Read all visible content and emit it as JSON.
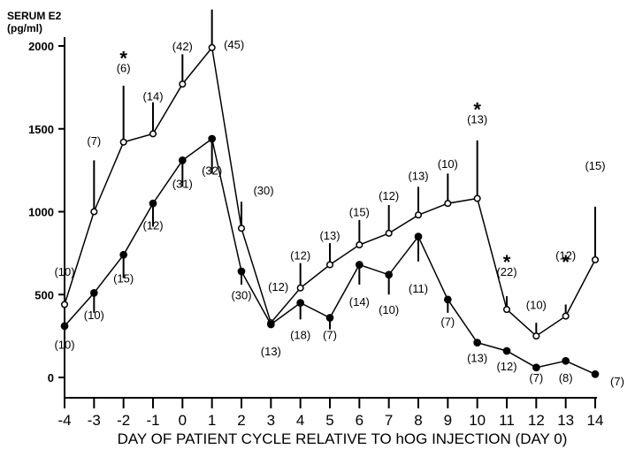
{
  "chart_data": {
    "type": "line",
    "title": "",
    "ylabel_line1": "SERUM E2",
    "ylabel_line2": "(pg/ml)",
    "xlabel": "DAY OF PATIENT CYCLE RELATIVE TO hOG INJECTION (DAY 0)",
    "xlim": [
      -4,
      14
    ],
    "ylim": [
      0,
      2000
    ],
    "x_ticks": [
      -4,
      -3,
      -2,
      -1,
      0,
      1,
      2,
      3,
      4,
      5,
      6,
      7,
      8,
      9,
      10,
      11,
      12,
      13,
      14
    ],
    "x_tick_labels": [
      "-4",
      "-3",
      "-2",
      "-1",
      "0",
      "1",
      "2",
      "3",
      "4",
      "5",
      "6",
      "7",
      "8",
      "9",
      "10",
      "11",
      "12",
      "13",
      "14"
    ],
    "y_ticks": [
      0,
      500,
      1000,
      1500,
      2000
    ],
    "y_tick_labels": [
      "0",
      "500",
      "1000",
      "1500",
      "2000"
    ],
    "grid": false,
    "series": [
      {
        "marker": "open-circle",
        "color": "#000000",
        "x": [
          -4,
          -3,
          -2,
          -1,
          0,
          1,
          2,
          3,
          4,
          5,
          6,
          7,
          8,
          9,
          10,
          11,
          12,
          13,
          14
        ],
        "y": [
          440,
          1000,
          1420,
          1470,
          1770,
          1990,
          900,
          330,
          540,
          680,
          800,
          870,
          980,
          1050,
          1080,
          410,
          250,
          370,
          710
        ],
        "err_upper": [
          540,
          1310,
          1760,
          1660,
          1950,
          2220,
          1060,
          340,
          690,
          810,
          950,
          1040,
          1150,
          1230,
          1430,
          490,
          330,
          440,
          1030
        ],
        "n_labels": [
          {
            "text": "(10)",
            "x": -4,
            "y": 640
          },
          {
            "text": "(7)",
            "x": -3,
            "y": 1430
          },
          {
            "text": "(6)",
            "x": -2,
            "y": 1870
          },
          {
            "text": "(14)",
            "x": -1,
            "y": 1700
          },
          {
            "text": "(42)",
            "x": 0,
            "y": 2000
          },
          {
            "text": "(45)",
            "x": 1.75,
            "y": 2010
          },
          {
            "text": "(30)",
            "x": 2.75,
            "y": 1130
          },
          {
            "text": "(12)",
            "x": 3.25,
            "y": 550
          },
          {
            "text": "(12)",
            "x": 4,
            "y": 740
          },
          {
            "text": "(13)",
            "x": 5,
            "y": 860
          },
          {
            "text": "(15)",
            "x": 6,
            "y": 1000
          },
          {
            "text": "(12)",
            "x": 7,
            "y": 1100
          },
          {
            "text": "(13)",
            "x": 8,
            "y": 1220
          },
          {
            "text": "(10)",
            "x": 9,
            "y": 1290
          },
          {
            "text": "(13)",
            "x": 10,
            "y": 1560
          },
          {
            "text": "(22)",
            "x": 11,
            "y": 640
          },
          {
            "text": "(10)",
            "x": 12,
            "y": 440
          },
          {
            "text": "(12)",
            "x": 13,
            "y": 740
          },
          {
            "text": "(15)",
            "x": 14,
            "y": 1280
          }
        ]
      },
      {
        "marker": "filled-circle",
        "color": "#000000",
        "x": [
          -4,
          -3,
          -2,
          -1,
          0,
          1,
          2,
          3,
          4,
          5,
          6,
          7,
          8,
          9,
          10,
          11,
          12,
          13,
          14
        ],
        "y": [
          310,
          510,
          740,
          1050,
          1310,
          1440,
          640,
          320,
          450,
          360,
          680,
          620,
          850,
          470,
          210,
          160,
          60,
          100,
          20
        ],
        "err_lower": [
          210,
          390,
          600,
          910,
          1150,
          1230,
          560,
          310,
          350,
          290,
          560,
          500,
          700,
          390,
          190,
          140,
          50,
          90,
          15
        ],
        "n_labels": [
          {
            "text": "(10)",
            "x": -4,
            "y": 200
          },
          {
            "text": "(10)",
            "x": -3,
            "y": 380
          },
          {
            "text": "(15)",
            "x": -2,
            "y": 600
          },
          {
            "text": "(12)",
            "x": -1,
            "y": 920
          },
          {
            "text": "(31)",
            "x": 0,
            "y": 1170
          },
          {
            "text": "(32)",
            "x": 1,
            "y": 1250
          },
          {
            "text": "(30)",
            "x": 2,
            "y": 500
          },
          {
            "text": "(13)",
            "x": 3,
            "y": 160
          },
          {
            "text": "(18)",
            "x": 4,
            "y": 260
          },
          {
            "text": "(7)",
            "x": 5,
            "y": 260
          },
          {
            "text": "(14)",
            "x": 6,
            "y": 460
          },
          {
            "text": "(10)",
            "x": 7,
            "y": 410
          },
          {
            "text": "(11)",
            "x": 8,
            "y": 540
          },
          {
            "text": "(7)",
            "x": 9,
            "y": 340
          },
          {
            "text": "(13)",
            "x": 10,
            "y": 120
          },
          {
            "text": "(12)",
            "x": 11,
            "y": 70
          },
          {
            "text": "(7)",
            "x": 12,
            "y": 0
          },
          {
            "text": "(8)",
            "x": 13,
            "y": 0
          },
          {
            "text": "(7)",
            "x": 14.75,
            "y": -20
          }
        ]
      }
    ],
    "annotations": [
      {
        "text": "*",
        "x": -2,
        "y": 1950
      },
      {
        "text": "*",
        "x": 10,
        "y": 1640
      },
      {
        "text": "*",
        "x": 11,
        "y": 720
      },
      {
        "text": "*",
        "x": 13,
        "y": 720
      }
    ]
  }
}
